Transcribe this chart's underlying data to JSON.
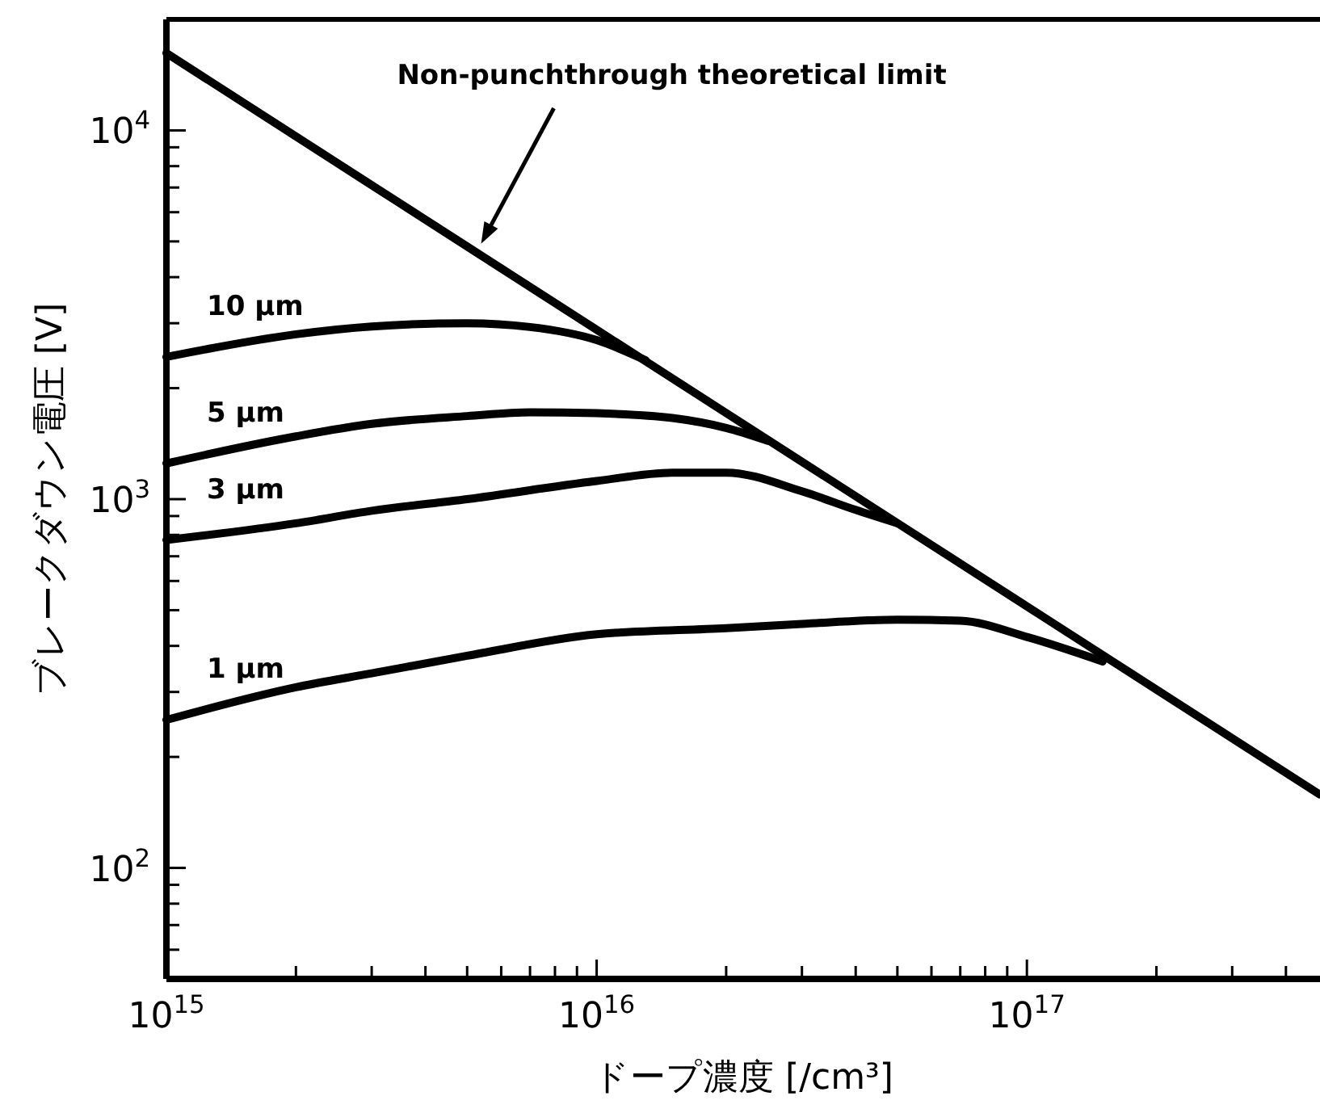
{
  "chart_data": {
    "type": "line",
    "xlabel": "ドープ濃度 [/cm³]",
    "ylabel": "ブレークダウン電圧 [V]",
    "log": "xy",
    "line_style": "solid",
    "xlim": [
      1000000000000000.0,
      4.8e+17
    ],
    "ylim": [
      50,
      20000
    ],
    "xticks": [
      {
        "value": 1000000000000000.0,
        "label": "10$^{15}$"
      },
      {
        "value": 2000000000000000.0,
        "label": null
      },
      {
        "value": 3000000000000000.0,
        "label": null
      },
      {
        "value": 4000000000000000.0,
        "label": null
      },
      {
        "value": 5000000000000000.0,
        "label": null
      },
      {
        "value": 6000000000000000.0,
        "label": null
      },
      {
        "value": 7000000000000000.0,
        "label": null
      },
      {
        "value": 8000000000000000.0,
        "label": null
      },
      {
        "value": 9000000000000000.0,
        "label": null
      },
      {
        "value": 1e+16,
        "label": "10$^{16}$"
      },
      {
        "value": 2e+16,
        "label": null
      },
      {
        "value": 3e+16,
        "label": null
      },
      {
        "value": 4e+16,
        "label": null
      },
      {
        "value": 5e+16,
        "label": null
      },
      {
        "value": 6e+16,
        "label": null
      },
      {
        "value": 7e+16,
        "label": null
      },
      {
        "value": 8e+16,
        "label": null
      },
      {
        "value": 9e+16,
        "label": null
      },
      {
        "value": 1e+17,
        "label": "10$^{17}$"
      },
      {
        "value": 2e+17,
        "label": null
      },
      {
        "value": 3e+17,
        "label": null
      },
      {
        "value": 4e+17,
        "label": null
      }
    ],
    "yticks": [
      {
        "value": 60,
        "label": null
      },
      {
        "value": 70,
        "label": null
      },
      {
        "value": 80,
        "label": null
      },
      {
        "value": 90,
        "label": null
      },
      {
        "value": 100,
        "label": "10$^{2}$"
      },
      {
        "value": 200,
        "label": null
      },
      {
        "value": 300,
        "label": null
      },
      {
        "value": 400,
        "label": null
      },
      {
        "value": 500,
        "label": null
      },
      {
        "value": 600,
        "label": null
      },
      {
        "value": 700,
        "label": null
      },
      {
        "value": 800,
        "label": null
      },
      {
        "value": 900,
        "label": null
      },
      {
        "value": 1000,
        "label": "10$^{3}$"
      },
      {
        "value": 2000,
        "label": null
      },
      {
        "value": 3000,
        "label": null
      },
      {
        "value": 4000,
        "label": null
      },
      {
        "value": 5000,
        "label": null
      },
      {
        "value": 6000,
        "label": null
      },
      {
        "value": 7000,
        "label": null
      },
      {
        "value": 8000,
        "label": null
      },
      {
        "value": 9000,
        "label": null
      },
      {
        "value": 10000,
        "label": "10$^{4}$"
      }
    ],
    "annotations": [
      "Non-punchthrough theoretical limit"
    ],
    "series": [
      {
        "color": "#000000",
        "x": [
          1000000000000000.0,
          1e+16,
          1e+17,
          4.8e+17
        ],
        "values": [
          16200,
          2880,
          512,
          158
        ]
      },
      {
        "name": "10 μm",
        "color": "#000000",
        "x": [
          1000000000000000.0,
          2000000000000000.0,
          3000000000000000.0,
          5000000000000000.0,
          7000000000000000.0,
          1e+16,
          1.3e+16
        ],
        "values": [
          2430,
          2800,
          2940,
          3000,
          2930,
          2700,
          2380
        ]
      },
      {
        "name": "5 μm",
        "color": "#000000",
        "x": [
          1000000000000000.0,
          2000000000000000.0,
          3000000000000000.0,
          5000000000000000.0,
          7000000000000000.0,
          1e+16,
          1.5e+16,
          2e+16,
          2.5e+16
        ],
        "values": [
          1250,
          1480,
          1600,
          1680,
          1720,
          1710,
          1660,
          1560,
          1440
        ]
      },
      {
        "name": "3 μm",
        "color": "#000000",
        "x": [
          1000000000000000.0,
          2000000000000000.0,
          3000000000000000.0,
          5000000000000000.0,
          1e+16,
          1.5e+16,
          2e+16,
          3e+16,
          4e+16,
          5e+16
        ],
        "values": [
          775,
          860,
          930,
          1000,
          1120,
          1180,
          1180,
          1050,
          935,
          860
        ]
      },
      {
        "name": "1 μm",
        "color": "#000000",
        "x": [
          1000000000000000.0,
          2000000000000000.0,
          3000000000000000.0,
          5000000000000000.0,
          1e+16,
          2e+16,
          3e+16,
          5e+16,
          7e+16,
          1e+17,
          1.5e+17
        ],
        "values": [
          252,
          309,
          337,
          376,
          430,
          447,
          459,
          471,
          468,
          423,
          363
        ]
      }
    ]
  }
}
